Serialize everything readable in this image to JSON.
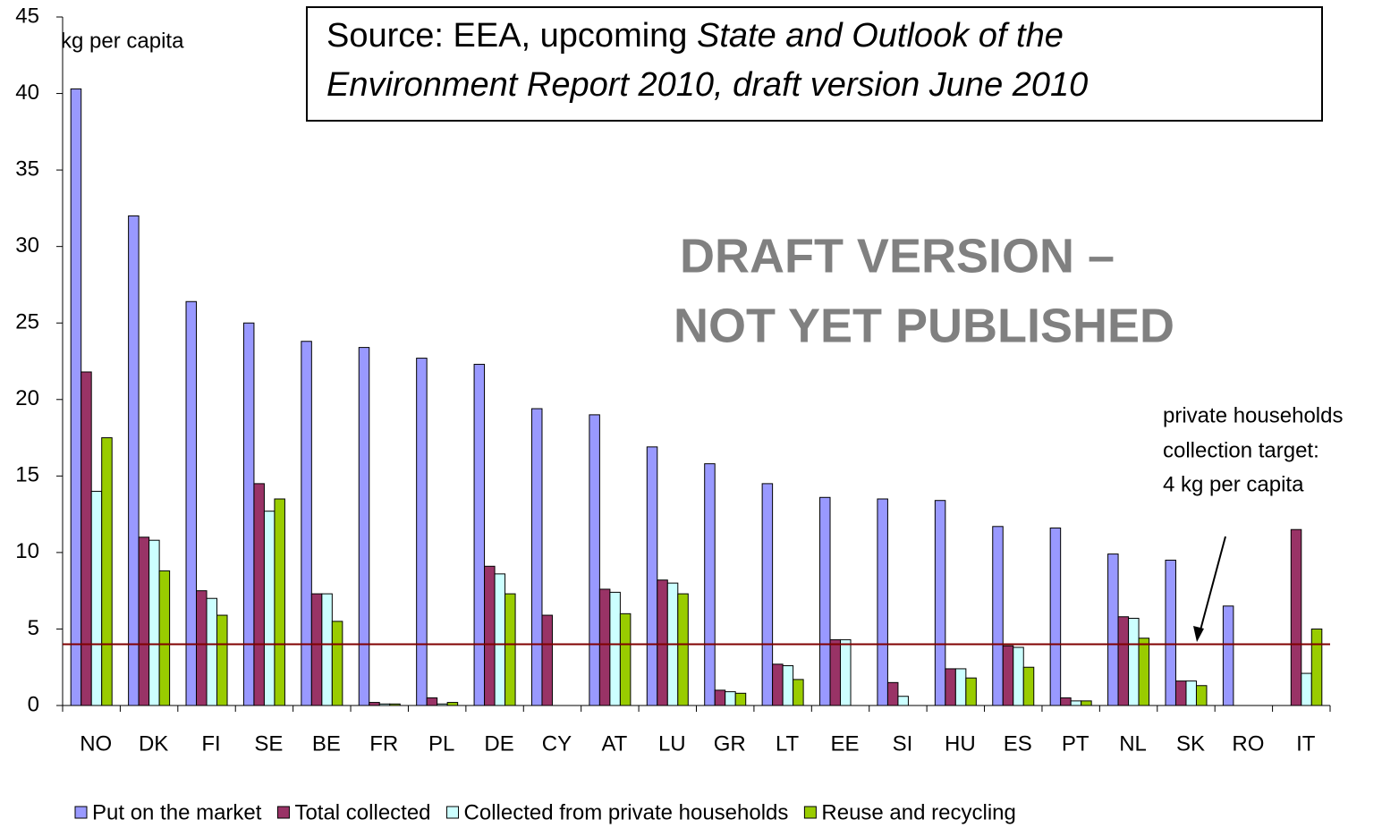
{
  "chart_data": {
    "type": "bar",
    "y_label": "kg per capita",
    "source": [
      "Source: EEA, upcoming ",
      "State and Outlook of the",
      "Environment Report 2010, draft version June 2010"
    ],
    "watermark": [
      "DRAFT VERSION –",
      "NOT YET  PUBLISHED"
    ],
    "annotation": [
      "private households",
      "collection target:",
      "4 kg per capita"
    ],
    "target": 4,
    "target_color": "#800000",
    "categories": [
      "NO",
      "DK",
      "FI",
      "SE",
      "BE",
      "FR",
      "PL",
      "DE",
      "CY",
      "AT",
      "LU",
      "GR",
      "LT",
      "EE",
      "SI",
      "HU",
      "ES",
      "PT",
      "NL",
      "SK",
      "RO",
      "IT"
    ],
    "series": [
      {
        "name": "Put on the market",
        "color": "#9999ff",
        "values": [
          40.3,
          32.0,
          26.4,
          25.0,
          23.8,
          23.4,
          22.7,
          22.3,
          19.4,
          19.0,
          16.9,
          15.8,
          14.5,
          13.6,
          13.5,
          13.4,
          11.7,
          11.6,
          9.9,
          9.5,
          6.5,
          null
        ]
      },
      {
        "name": "Total collected",
        "color": "#993366",
        "values": [
          21.8,
          11.0,
          7.5,
          14.5,
          7.3,
          0.2,
          0.5,
          9.1,
          5.9,
          7.6,
          8.2,
          1.0,
          2.7,
          4.3,
          1.5,
          2.4,
          3.9,
          0.5,
          5.8,
          1.6,
          null,
          11.5
        ]
      },
      {
        "name": "Collected from private households",
        "color": "#ccffff",
        "values": [
          14.0,
          10.8,
          7.0,
          12.7,
          7.3,
          0.1,
          0.1,
          8.6,
          null,
          7.4,
          8.0,
          0.9,
          2.6,
          4.3,
          0.6,
          2.4,
          3.8,
          0.3,
          5.7,
          1.6,
          null,
          2.1
        ]
      },
      {
        "name": "Reuse and recycling",
        "color": "#99cc00",
        "values": [
          17.5,
          8.8,
          5.9,
          13.5,
          5.5,
          0.1,
          0.2,
          7.3,
          null,
          6.0,
          7.3,
          0.8,
          1.7,
          null,
          null,
          1.8,
          2.5,
          0.3,
          4.4,
          1.3,
          null,
          5.0
        ]
      }
    ],
    "ylim": [
      0,
      45
    ],
    "yticks": [
      0,
      5,
      10,
      15,
      20,
      25,
      30,
      35,
      40,
      45
    ]
  }
}
